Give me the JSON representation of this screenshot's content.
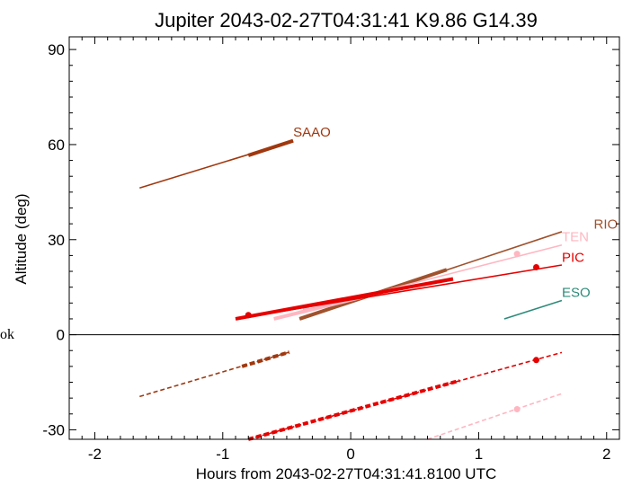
{
  "chart_data": {
    "type": "line",
    "title": "Jupiter 2043-02-27T04:31:41  K9.86  G14.39",
    "xlabel": "Hours from 2043-02-27T04:31:41.8100 UTC",
    "ylabel": "Altitude (deg)",
    "xlim": [
      -2.2,
      2.1
    ],
    "ylim": [
      -33,
      94
    ],
    "x_ticks": [
      "-2",
      "-1",
      "0",
      "1",
      "2"
    ],
    "y_ticks": [
      "-30",
      "0",
      "30",
      "60",
      "90"
    ],
    "left_edge_text": "ok",
    "series": [
      {
        "name": "SAAO",
        "color": "#a0380f",
        "label_at": [
          -0.45,
          62.5
        ],
        "segments": [
          {
            "x": [
              -1.65,
              -0.45
            ],
            "y": [
              46.3,
              61.2
            ],
            "weight": "thin"
          },
          {
            "x": [
              -0.8,
              -0.45
            ],
            "y": [
              56.6,
              61.2
            ],
            "weight": "thick"
          },
          {
            "x": [
              -1.65,
              -0.48
            ],
            "y": [
              -19.5,
              -5.5
            ],
            "weight": "thin",
            "dash": true
          },
          {
            "x": [
              -0.85,
              -0.48
            ],
            "y": [
              -10.0,
              -5.5
            ],
            "weight": "thick",
            "dash": true
          }
        ],
        "markers": []
      },
      {
        "name": "RIO",
        "color": "#a0522d",
        "label_at": [
          1.9,
          33.5
        ],
        "segments": [
          {
            "x": [
              -0.4,
              1.65
            ],
            "y": [
              5.0,
              32.5
            ],
            "weight": "thin"
          },
          {
            "x": [
              -0.4,
              0.75
            ],
            "y": [
              5.0,
              20.5
            ],
            "weight": "thick"
          }
        ],
        "markers": []
      },
      {
        "name": "TEN",
        "color": "#ffb6c1",
        "label_at": [
          1.65,
          29.5
        ],
        "segments": [
          {
            "x": [
              -0.6,
              1.65
            ],
            "y": [
              5.0,
              28.3
            ],
            "weight": "thin"
          },
          {
            "x": [
              -0.6,
              0.25
            ],
            "y": [
              5.0,
              13.5
            ],
            "weight": "thick"
          },
          {
            "x": [
              0.6,
              1.65
            ],
            "y": [
              -33.0,
              -18.6
            ],
            "weight": "thin",
            "dash": true
          }
        ],
        "markers": [
          {
            "x": 1.3,
            "y": 25.5
          },
          {
            "x": -0.35,
            "y": 8.2
          },
          {
            "x": 1.3,
            "y": -23.5
          }
        ]
      },
      {
        "name": "PIC",
        "color": "#e60000",
        "label_at": [
          1.65,
          23.0
        ],
        "segments": [
          {
            "x": [
              -0.9,
              1.65
            ],
            "y": [
              5.0,
              22.0
            ],
            "weight": "thin"
          },
          {
            "x": [
              -0.9,
              0.8
            ],
            "y": [
              5.0,
              17.6
            ],
            "weight": "thick"
          },
          {
            "x": [
              -0.8,
              1.65
            ],
            "y": [
              -33.0,
              -5.6
            ],
            "weight": "thin",
            "dash": true
          },
          {
            "x": [
              -0.8,
              0.85
            ],
            "y": [
              -33.0,
              -14.5
            ],
            "weight": "thick",
            "dash": true
          }
        ],
        "markers": [
          {
            "x": 1.45,
            "y": 21.3
          },
          {
            "x": -0.8,
            "y": 6.2
          },
          {
            "x": 1.45,
            "y": -8.0
          }
        ]
      },
      {
        "name": "ESO",
        "color": "#2e8b7a",
        "label_at": [
          1.65,
          12.0
        ],
        "segments": [
          {
            "x": [
              1.2,
              1.65
            ],
            "y": [
              5.0,
              10.8
            ],
            "weight": "thin"
          }
        ],
        "markers": []
      }
    ],
    "horizon_line": 0,
    "grid": false
  }
}
